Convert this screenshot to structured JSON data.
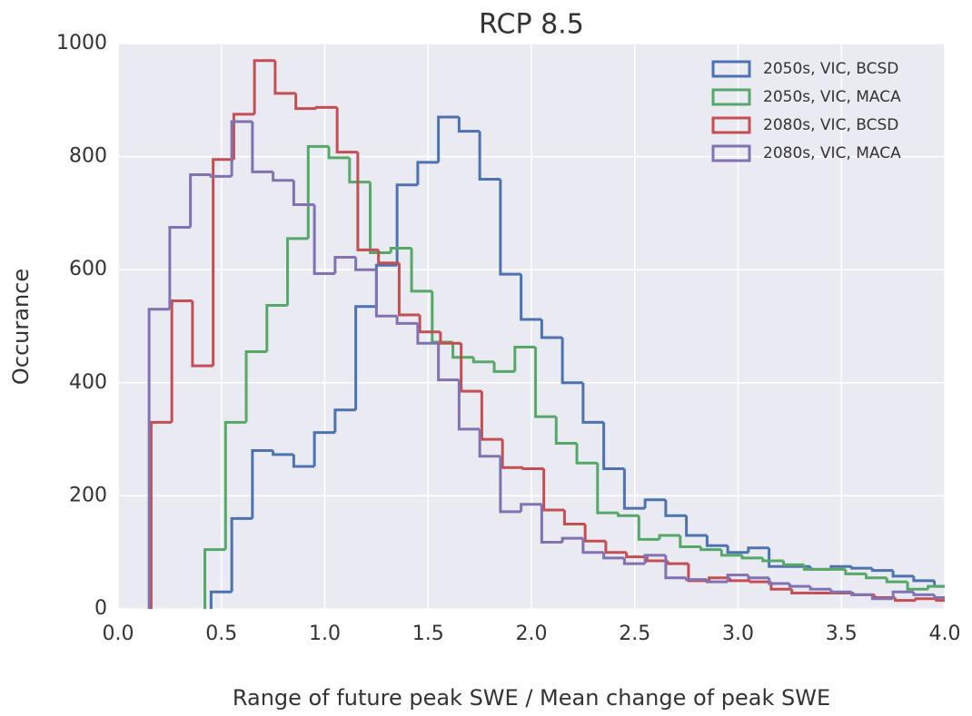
{
  "chart_data": {
    "type": "histogram",
    "title": "RCP 8.5",
    "xlabel": "Range of future peak SWE / Mean change of peak SWE",
    "ylabel": "Occurance",
    "xlim": [
      0,
      4
    ],
    "ylim": [
      0,
      1000
    ],
    "xticks": [
      {
        "value": 0,
        "label": "0.0"
      },
      {
        "value": 0.5,
        "label": "0.5"
      },
      {
        "value": 1,
        "label": "1.0"
      },
      {
        "value": 1.5,
        "label": "1.5"
      },
      {
        "value": 2,
        "label": "2.0"
      },
      {
        "value": 2.5,
        "label": "2.5"
      },
      {
        "value": 3,
        "label": "3.0"
      },
      {
        "value": 3.5,
        "label": "3.5"
      },
      {
        "value": 4,
        "label": "4.0"
      }
    ],
    "yticks": [
      0,
      200,
      400,
      600,
      800,
      1000
    ],
    "grid": true,
    "legend": "upper right",
    "series": [
      {
        "name": "2050s, VIC, BCSD",
        "color": "#4c72b0",
        "bins": [
          0.45,
          0.55,
          0.65,
          0.75,
          0.85,
          0.95,
          1.05,
          1.15,
          1.25,
          1.35,
          1.45,
          1.55,
          1.65,
          1.75,
          1.85,
          1.95,
          2.05,
          2.15,
          2.25,
          2.35,
          2.45,
          2.55,
          2.65,
          2.75,
          2.85,
          2.95,
          3.05,
          3.15,
          3.25,
          3.35,
          3.45,
          3.55,
          3.65,
          3.75,
          3.85,
          3.95,
          4.05
        ],
        "values": [
          30,
          160,
          280,
          273,
          252,
          312,
          352,
          535,
          608,
          750,
          790,
          870,
          845,
          760,
          592,
          512,
          480,
          400,
          330,
          248,
          178,
          193,
          165,
          130,
          112,
          100,
          108,
          75,
          75,
          70,
          75,
          72,
          68,
          58,
          50,
          40
        ]
      },
      {
        "name": "2050s, VIC, MACA",
        "color": "#55a868",
        "bins": [
          0.42,
          0.52,
          0.62,
          0.72,
          0.82,
          0.92,
          1.02,
          1.12,
          1.22,
          1.32,
          1.42,
          1.52,
          1.62,
          1.72,
          1.82,
          1.92,
          2.02,
          2.12,
          2.22,
          2.32,
          2.42,
          2.52,
          2.62,
          2.72,
          2.82,
          2.92,
          3.02,
          3.12,
          3.22,
          3.32,
          3.42,
          3.52,
          3.62,
          3.72,
          3.82,
          3.92,
          4.02
        ],
        "values": [
          105,
          330,
          455,
          537,
          655,
          818,
          798,
          755,
          630,
          638,
          562,
          472,
          445,
          437,
          420,
          463,
          340,
          293,
          258,
          170,
          165,
          123,
          130,
          110,
          105,
          95,
          90,
          85,
          78,
          70,
          70,
          62,
          55,
          48,
          35,
          40
        ]
      },
      {
        "name": "2080s, VIC, BCSD",
        "color": "#c44e52",
        "bins": [
          0.16,
          0.26,
          0.36,
          0.46,
          0.56,
          0.66,
          0.76,
          0.86,
          0.96,
          1.06,
          1.16,
          1.26,
          1.36,
          1.46,
          1.56,
          1.66,
          1.76,
          1.86,
          1.96,
          2.06,
          2.16,
          2.26,
          2.36,
          2.46,
          2.56,
          2.66,
          2.76,
          2.86,
          2.96,
          3.06,
          3.16,
          3.26,
          3.36,
          3.46,
          3.56,
          3.66,
          3.76,
          3.86,
          3.96,
          4.06
        ],
        "values": [
          330,
          545,
          430,
          795,
          875,
          970,
          912,
          885,
          887,
          808,
          635,
          612,
          520,
          490,
          470,
          385,
          300,
          250,
          248,
          175,
          150,
          120,
          100,
          92,
          85,
          80,
          50,
          55,
          50,
          48,
          35,
          28,
          28,
          28,
          25,
          20,
          15,
          18,
          15
        ]
      },
      {
        "name": "2080s, VIC, MACA",
        "color": "#8172b2",
        "bins": [
          0.15,
          0.25,
          0.35,
          0.45,
          0.55,
          0.65,
          0.75,
          0.85,
          0.95,
          1.05,
          1.15,
          1.25,
          1.35,
          1.45,
          1.55,
          1.65,
          1.75,
          1.85,
          1.95,
          2.05,
          2.15,
          2.25,
          2.35,
          2.45,
          2.55,
          2.65,
          2.75,
          2.85,
          2.95,
          3.05,
          3.15,
          3.25,
          3.35,
          3.45,
          3.55,
          3.65,
          3.75,
          3.85,
          3.95,
          4.05
        ],
        "values": [
          530,
          675,
          768,
          765,
          862,
          773,
          758,
          715,
          593,
          622,
          600,
          518,
          505,
          470,
          405,
          318,
          270,
          172,
          185,
          118,
          125,
          100,
          90,
          80,
          95,
          55,
          52,
          48,
          60,
          55,
          45,
          40,
          35,
          30,
          25,
          18,
          30,
          25,
          20
        ]
      }
    ]
  }
}
